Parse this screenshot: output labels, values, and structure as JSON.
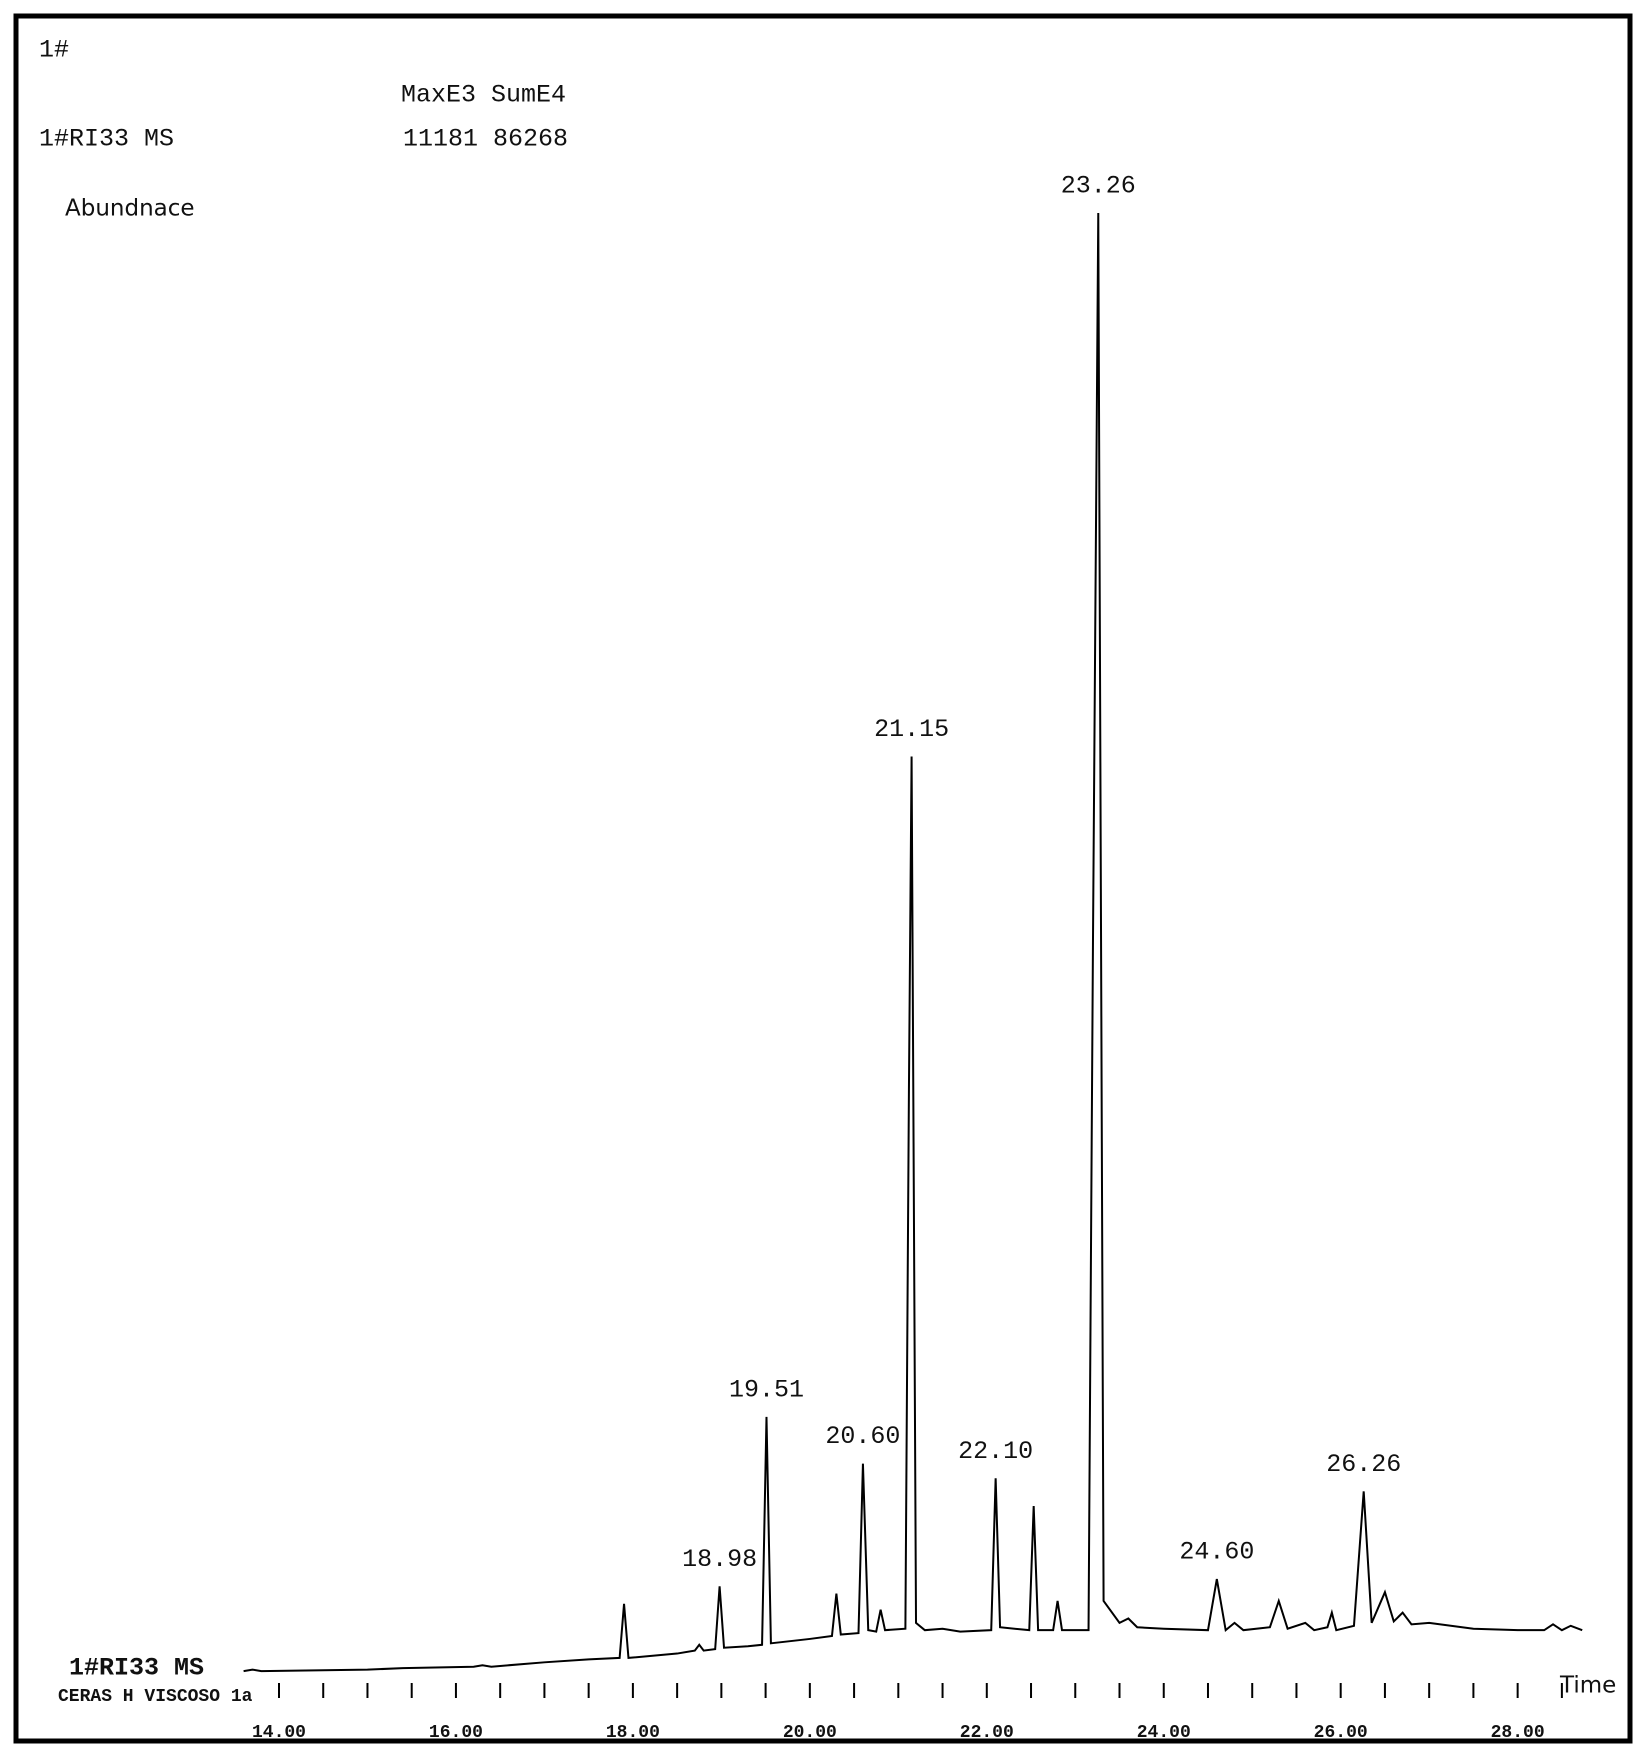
{
  "chart_data": {
    "type": "line",
    "title": "1#",
    "column_header": "MaxE3 SumE4",
    "trace_name": "1#RI33 MS",
    "trace_stats": "11181 86268",
    "ylabel": "Abundnace",
    "xlabel": "Time",
    "sample_name": "CERAS H VISCOSO 1a",
    "xlim": [
      13.6,
      28.75
    ],
    "ylim": [
      0,
      100
    ],
    "xticks": [
      {
        "value": 14,
        "label": "14.00"
      },
      {
        "value": 16,
        "label": "16.00"
      },
      {
        "value": 18,
        "label": "18.00"
      },
      {
        "value": 20,
        "label": "20.00"
      },
      {
        "value": 22,
        "label": "22.00"
      },
      {
        "value": 24,
        "label": "24.00"
      },
      {
        "value": 26,
        "label": "26.00"
      },
      {
        "value": 28,
        "label": "28.00"
      }
    ],
    "xminor_ticks": [
      14,
      14.5,
      15,
      15.5,
      16,
      16.5,
      17,
      17.5,
      18,
      18.5,
      19,
      19.5,
      20,
      20.5,
      21,
      21.5,
      22,
      22.5,
      23,
      23.5,
      24,
      24.5,
      25,
      25.5,
      26,
      26.5,
      27,
      27.5,
      28,
      28.5
    ],
    "series": [
      {
        "name": "1#RI33 MS",
        "color": "#000000",
        "x": [
          13.6,
          13.7,
          13.8,
          15.0,
          15.4,
          16.2,
          16.3,
          16.4,
          17.0,
          17.5,
          17.85,
          17.9,
          17.95,
          18.5,
          18.7,
          18.75,
          18.8,
          18.93,
          18.98,
          19.03,
          19.3,
          19.46,
          19.51,
          19.56,
          20.0,
          20.25,
          20.3,
          20.35,
          20.55,
          20.6,
          20.66,
          20.75,
          20.8,
          20.85,
          21.08,
          21.12,
          21.15,
          21.2,
          21.3,
          21.5,
          21.7,
          22.05,
          22.1,
          22.15,
          22.48,
          22.53,
          22.58,
          22.75,
          22.8,
          22.85,
          23.15,
          23.2,
          23.26,
          23.32,
          23.5,
          23.6,
          23.7,
          24.0,
          24.5,
          24.6,
          24.7,
          24.8,
          24.9,
          25.2,
          25.3,
          25.4,
          25.6,
          25.7,
          25.85,
          25.9,
          25.95,
          26.15,
          26.26,
          26.35,
          26.5,
          26.6,
          26.7,
          26.8,
          27.0,
          27.5,
          28.0,
          28.3,
          28.4,
          28.5,
          28.6,
          28.73
        ],
        "values": [
          0.2,
          0.3,
          0.2,
          0.3,
          0.4,
          0.5,
          0.6,
          0.5,
          0.8,
          1.0,
          1.1,
          4.8,
          1.1,
          1.4,
          1.6,
          2.0,
          1.6,
          1.7,
          6.0,
          1.8,
          1.9,
          2.0,
          17.6,
          2.1,
          2.4,
          2.6,
          5.5,
          2.7,
          2.8,
          14.4,
          3.0,
          2.9,
          4.4,
          3.0,
          3.1,
          40.0,
          62.8,
          3.5,
          3.0,
          3.1,
          2.9,
          3.0,
          13.4,
          3.2,
          3.0,
          11.5,
          3.0,
          3.0,
          5.0,
          3.0,
          3.0,
          50.0,
          100,
          5.0,
          3.5,
          3.8,
          3.2,
          3.1,
          3.0,
          6.5,
          3.0,
          3.5,
          3.0,
          3.2,
          5.0,
          3.1,
          3.5,
          3.0,
          3.2,
          4.2,
          3.0,
          3.3,
          12.5,
          3.5,
          5.6,
          3.6,
          4.2,
          3.4,
          3.5,
          3.1,
          3.0,
          3.0,
          3.4,
          3.0,
          3.3,
          3.0
        ]
      }
    ],
    "annotations": [
      {
        "x": 18.98,
        "y": 6.0,
        "text": "18.98"
      },
      {
        "x": 19.51,
        "y": 17.6,
        "text": "19.51"
      },
      {
        "x": 20.6,
        "y": 14.4,
        "text": "20.60"
      },
      {
        "x": 21.15,
        "y": 62.8,
        "text": "21.15"
      },
      {
        "x": 22.1,
        "y": 13.4,
        "text": "22.10"
      },
      {
        "x": 23.26,
        "y": 100,
        "text": "23.26"
      },
      {
        "x": 24.6,
        "y": 6.5,
        "text": "24.60"
      },
      {
        "x": 26.26,
        "y": 12.5,
        "text": "26.26"
      }
    ]
  }
}
